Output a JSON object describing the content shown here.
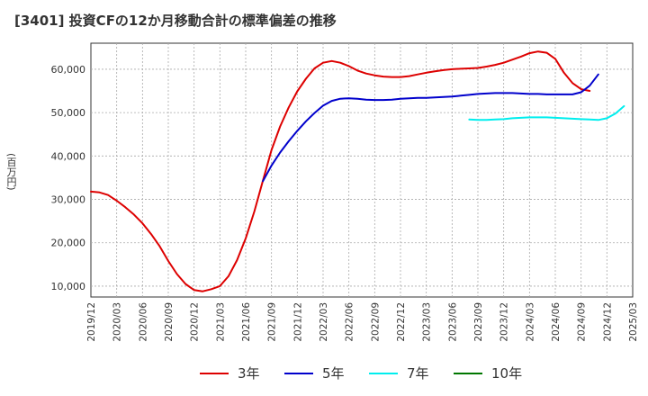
{
  "title": "[3401]  投資CFの12か月移動合計の標準偏差の推移",
  "colors": {
    "s3": "#dd0000",
    "s5": "#0000cc",
    "s7": "#00eeee",
    "s10": "#007700"
  },
  "chart_data": {
    "type": "line",
    "ylabel": "(百万円)",
    "ylim": [
      7500,
      66000
    ],
    "yticks": [
      10000,
      20000,
      30000,
      40000,
      50000,
      60000
    ],
    "ytick_labels": [
      "10,000",
      "20,000",
      "30,000",
      "40,000",
      "50,000",
      "60,000"
    ],
    "xticks": [
      "2019/12",
      "2020/03",
      "2020/06",
      "2020/09",
      "2020/12",
      "2021/03",
      "2021/06",
      "2021/09",
      "2021/12",
      "2022/03",
      "2022/06",
      "2022/09",
      "2022/12",
      "2023/03",
      "2023/06",
      "2023/09",
      "2023/12",
      "2024/03",
      "2024/06",
      "2024/09",
      "2024/12",
      "2025/03"
    ],
    "grid": true,
    "legend_position": "bottom",
    "series": [
      {
        "name": "3年",
        "color_key": "s3",
        "start": "2019/12",
        "values": [
          31800,
          31600,
          31000,
          29700,
          28200,
          26500,
          24500,
          22000,
          19200,
          15800,
          12800,
          10500,
          9100,
          8800,
          9300,
          10000,
          12300,
          16000,
          21000,
          27200,
          34300,
          41400,
          46800,
          51200,
          54900,
          57800,
          60200,
          61500,
          61900,
          61500,
          60700,
          59700,
          59000,
          58600,
          58300,
          58200,
          58200,
          58400,
          58800,
          59200,
          59500,
          59800,
          60000,
          60100,
          60200,
          60300,
          60600,
          61000,
          61500,
          62200,
          62900,
          63700,
          64100,
          63800,
          62400,
          59200,
          56800,
          55400,
          55000
        ]
      },
      {
        "name": "5年",
        "color_key": "s5",
        "start": "2021/08",
        "values": [
          34200,
          37800,
          40800,
          43400,
          45800,
          48000,
          49900,
          51600,
          52700,
          53200,
          53300,
          53200,
          53000,
          52900,
          52900,
          53000,
          53200,
          53300,
          53400,
          53400,
          53500,
          53600,
          53700,
          53900,
          54100,
          54300,
          54400,
          54500,
          54500,
          54500,
          54400,
          54300,
          54300,
          54200,
          54200,
          54200,
          54200,
          54700,
          56200,
          58800
        ]
      },
      {
        "name": "7年",
        "color_key": "s7",
        "start": "2023/08",
        "values": [
          48400,
          48300,
          48300,
          48400,
          48500,
          48700,
          48800,
          48900,
          48900,
          48900,
          48800,
          48700,
          48600,
          48500,
          48400,
          48300,
          48700,
          49800,
          51500
        ]
      },
      {
        "name": "10年",
        "color_key": "s10",
        "start": "",
        "values": []
      }
    ]
  }
}
